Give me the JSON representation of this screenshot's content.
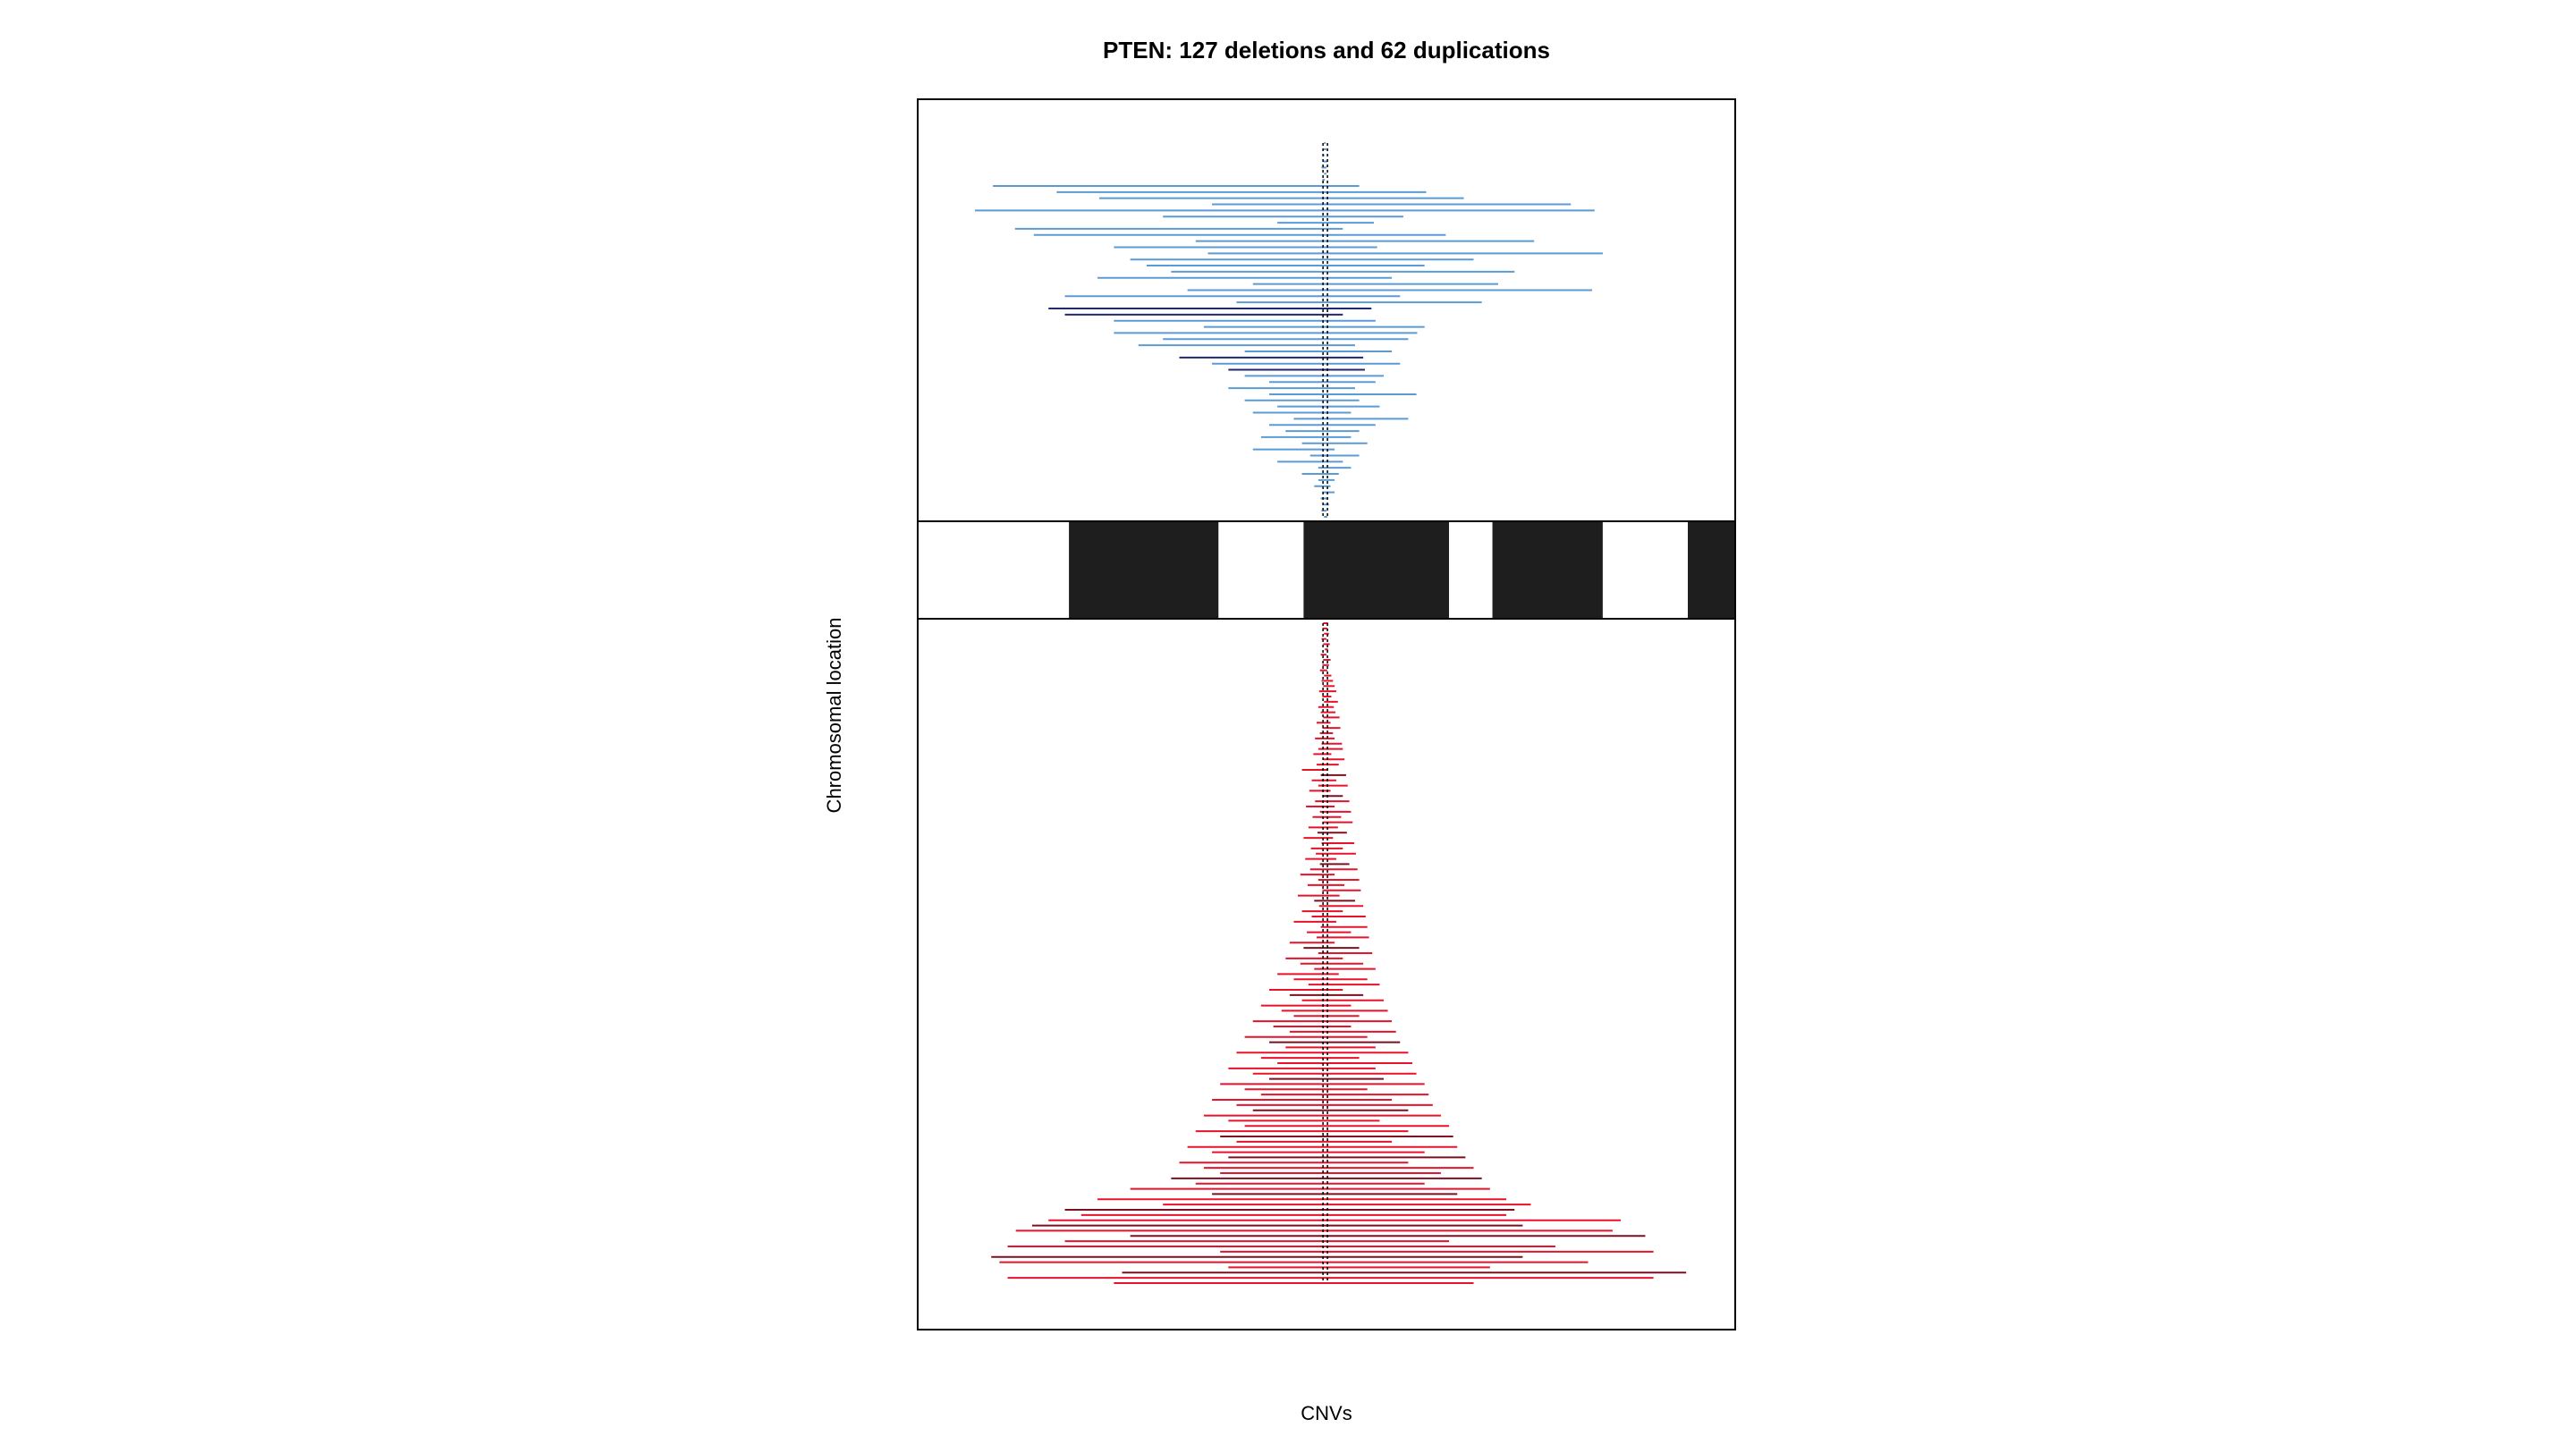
{
  "chart_data": {
    "type": "segment",
    "title": "PTEN: 127 deletions and 62 duplications",
    "xlabel": "CNVs",
    "ylabel": "Chromosomal location",
    "gene_marker": "PTEN",
    "deletion_count": 127,
    "duplication_count": 62,
    "colors": {
      "duplication": "#5b9bd5",
      "duplication_dark": "#1f2a6e",
      "deletion": "#e8132b",
      "deletion_dark": "#7a1020",
      "frame": "#000000",
      "band_dark": "#1e1e1e",
      "band_light": "#ffffff",
      "gene_line": "#000000"
    },
    "ideogram_bands": [
      {
        "start": 0.0,
        "end": 0.185,
        "stain": "light"
      },
      {
        "start": 0.185,
        "end": 0.368,
        "stain": "dark"
      },
      {
        "start": 0.368,
        "end": 0.472,
        "stain": "light"
      },
      {
        "start": 0.472,
        "end": 0.65,
        "stain": "dark"
      },
      {
        "start": 0.65,
        "end": 0.703,
        "stain": "light"
      },
      {
        "start": 0.703,
        "end": 0.838,
        "stain": "dark"
      },
      {
        "start": 0.838,
        "end": 0.942,
        "stain": "light"
      },
      {
        "start": 0.942,
        "end": 1.0,
        "stain": "dark"
      }
    ],
    "duplications": [
      {
        "start": 0.497,
        "end": 0.499
      },
      {
        "start": 0.496,
        "end": 0.5
      },
      {
        "start": 0.497,
        "end": 0.498
      },
      {
        "start": 0.496,
        "end": 0.501
      },
      {
        "start": 0.494,
        "end": 0.5
      },
      {
        "start": 0.497,
        "end": 0.5
      },
      {
        "start": 0.495,
        "end": 0.498
      },
      {
        "start": 0.092,
        "end": 0.54
      },
      {
        "start": 0.17,
        "end": 0.622
      },
      {
        "start": 0.222,
        "end": 0.668
      },
      {
        "start": 0.36,
        "end": 0.799
      },
      {
        "start": 0.07,
        "end": 0.828
      },
      {
        "start": 0.3,
        "end": 0.594
      },
      {
        "start": 0.44,
        "end": 0.558
      },
      {
        "start": 0.119,
        "end": 0.52
      },
      {
        "start": 0.142,
        "end": 0.646
      },
      {
        "start": 0.34,
        "end": 0.754
      },
      {
        "start": 0.24,
        "end": 0.562
      },
      {
        "start": 0.355,
        "end": 0.838
      },
      {
        "start": 0.26,
        "end": 0.68
      },
      {
        "start": 0.28,
        "end": 0.62
      },
      {
        "start": 0.31,
        "end": 0.73
      },
      {
        "start": 0.22,
        "end": 0.58
      },
      {
        "start": 0.41,
        "end": 0.71
      },
      {
        "start": 0.33,
        "end": 0.825
      },
      {
        "start": 0.18,
        "end": 0.59
      },
      {
        "start": 0.39,
        "end": 0.69
      },
      {
        "start": 0.16,
        "end": 0.555,
        "dark": true
      },
      {
        "start": 0.18,
        "end": 0.52,
        "dark": true
      },
      {
        "start": 0.24,
        "end": 0.56
      },
      {
        "start": 0.35,
        "end": 0.62
      },
      {
        "start": 0.24,
        "end": 0.611
      },
      {
        "start": 0.3,
        "end": 0.6
      },
      {
        "start": 0.27,
        "end": 0.535
      },
      {
        "start": 0.4,
        "end": 0.58
      },
      {
        "start": 0.32,
        "end": 0.545,
        "dark": true
      },
      {
        "start": 0.36,
        "end": 0.59
      },
      {
        "start": 0.38,
        "end": 0.547,
        "dark": true
      },
      {
        "start": 0.4,
        "end": 0.57
      },
      {
        "start": 0.43,
        "end": 0.56
      },
      {
        "start": 0.38,
        "end": 0.535
      },
      {
        "start": 0.43,
        "end": 0.61
      },
      {
        "start": 0.4,
        "end": 0.54
      },
      {
        "start": 0.44,
        "end": 0.565
      },
      {
        "start": 0.41,
        "end": 0.53
      },
      {
        "start": 0.46,
        "end": 0.6
      },
      {
        "start": 0.43,
        "end": 0.56
      },
      {
        "start": 0.45,
        "end": 0.54
      },
      {
        "start": 0.42,
        "end": 0.53
      },
      {
        "start": 0.47,
        "end": 0.55
      },
      {
        "start": 0.41,
        "end": 0.51
      },
      {
        "start": 0.48,
        "end": 0.54
      },
      {
        "start": 0.44,
        "end": 0.52
      },
      {
        "start": 0.49,
        "end": 0.53
      },
      {
        "start": 0.47,
        "end": 0.515
      },
      {
        "start": 0.49,
        "end": 0.51
      },
      {
        "start": 0.485,
        "end": 0.505
      },
      {
        "start": 0.495,
        "end": 0.51
      },
      {
        "start": 0.493,
        "end": 0.502
      },
      {
        "start": 0.496,
        "end": 0.503
      },
      {
        "start": 0.494,
        "end": 0.5
      },
      {
        "start": 0.497,
        "end": 0.501
      }
    ],
    "deletions": [
      {
        "start": 0.496,
        "end": 0.502
      },
      {
        "start": 0.495,
        "end": 0.501
      },
      {
        "start": 0.497,
        "end": 0.503
      },
      {
        "start": 0.494,
        "end": 0.5
      },
      {
        "start": 0.496,
        "end": 0.504
      },
      {
        "start": 0.498,
        "end": 0.502
      },
      {
        "start": 0.493,
        "end": 0.5
      },
      {
        "start": 0.496,
        "end": 0.505
      },
      {
        "start": 0.495,
        "end": 0.503
      },
      {
        "start": 0.492,
        "end": 0.501
      },
      {
        "start": 0.497,
        "end": 0.506
      },
      {
        "start": 0.494,
        "end": 0.508
      },
      {
        "start": 0.496,
        "end": 0.51
      },
      {
        "start": 0.491,
        "end": 0.512
      },
      {
        "start": 0.495,
        "end": 0.506
      },
      {
        "start": 0.497,
        "end": 0.514
      },
      {
        "start": 0.49,
        "end": 0.509
      },
      {
        "start": 0.493,
        "end": 0.511
      },
      {
        "start": 0.496,
        "end": 0.516
      },
      {
        "start": 0.488,
        "end": 0.505
      },
      {
        "start": 0.495,
        "end": 0.517
      },
      {
        "start": 0.492,
        "end": 0.508
      },
      {
        "start": 0.486,
        "end": 0.51
      },
      {
        "start": 0.494,
        "end": 0.519
      },
      {
        "start": 0.49,
        "end": 0.52
      },
      {
        "start": 0.484,
        "end": 0.506
      },
      {
        "start": 0.496,
        "end": 0.522
      },
      {
        "start": 0.488,
        "end": 0.515
      },
      {
        "start": 0.47,
        "end": 0.502
      },
      {
        "start": 0.493,
        "end": 0.524,
        "dark": true
      },
      {
        "start": 0.482,
        "end": 0.512
      },
      {
        "start": 0.49,
        "end": 0.526
      },
      {
        "start": 0.479,
        "end": 0.505
      },
      {
        "start": 0.495,
        "end": 0.52,
        "dark": true
      },
      {
        "start": 0.486,
        "end": 0.528
      },
      {
        "start": 0.475,
        "end": 0.51
      },
      {
        "start": 0.492,
        "end": 0.53
      },
      {
        "start": 0.483,
        "end": 0.518
      },
      {
        "start": 0.496,
        "end": 0.532
      },
      {
        "start": 0.478,
        "end": 0.514
      },
      {
        "start": 0.489,
        "end": 0.525,
        "dark": true
      },
      {
        "start": 0.472,
        "end": 0.508
      },
      {
        "start": 0.494,
        "end": 0.534
      },
      {
        "start": 0.481,
        "end": 0.52
      },
      {
        "start": 0.487,
        "end": 0.536
      },
      {
        "start": 0.474,
        "end": 0.512
      },
      {
        "start": 0.492,
        "end": 0.528,
        "dark": true
      },
      {
        "start": 0.48,
        "end": 0.538
      },
      {
        "start": 0.468,
        "end": 0.51
      },
      {
        "start": 0.49,
        "end": 0.54
      },
      {
        "start": 0.477,
        "end": 0.522
      },
      {
        "start": 0.495,
        "end": 0.542
      },
      {
        "start": 0.465,
        "end": 0.516
      },
      {
        "start": 0.485,
        "end": 0.535,
        "dark": true
      },
      {
        "start": 0.491,
        "end": 0.545
      },
      {
        "start": 0.47,
        "end": 0.52
      },
      {
        "start": 0.482,
        "end": 0.548
      },
      {
        "start": 0.46,
        "end": 0.512
      },
      {
        "start": 0.493,
        "end": 0.55
      },
      {
        "start": 0.476,
        "end": 0.53
      },
      {
        "start": 0.488,
        "end": 0.552
      },
      {
        "start": 0.455,
        "end": 0.51
      },
      {
        "start": 0.472,
        "end": 0.54,
        "dark": true
      },
      {
        "start": 0.49,
        "end": 0.556
      },
      {
        "start": 0.45,
        "end": 0.52
      },
      {
        "start": 0.468,
        "end": 0.545
      },
      {
        "start": 0.485,
        "end": 0.56
      },
      {
        "start": 0.44,
        "end": 0.515
      },
      {
        "start": 0.46,
        "end": 0.55
      },
      {
        "start": 0.478,
        "end": 0.565
      },
      {
        "start": 0.43,
        "end": 0.52
      },
      {
        "start": 0.455,
        "end": 0.545,
        "dark": true
      },
      {
        "start": 0.47,
        "end": 0.57
      },
      {
        "start": 0.42,
        "end": 0.53
      },
      {
        "start": 0.445,
        "end": 0.575
      },
      {
        "start": 0.46,
        "end": 0.54
      },
      {
        "start": 0.41,
        "end": 0.58
      },
      {
        "start": 0.435,
        "end": 0.53
      },
      {
        "start": 0.455,
        "end": 0.585
      },
      {
        "start": 0.4,
        "end": 0.55
      },
      {
        "start": 0.43,
        "end": 0.59,
        "dark": true
      },
      {
        "start": 0.45,
        "end": 0.56
      },
      {
        "start": 0.39,
        "end": 0.6
      },
      {
        "start": 0.42,
        "end": 0.54
      },
      {
        "start": 0.44,
        "end": 0.605
      },
      {
        "start": 0.38,
        "end": 0.56
      },
      {
        "start": 0.41,
        "end": 0.61
      },
      {
        "start": 0.43,
        "end": 0.57,
        "dark": true
      },
      {
        "start": 0.37,
        "end": 0.62
      },
      {
        "start": 0.4,
        "end": 0.55
      },
      {
        "start": 0.42,
        "end": 0.625
      },
      {
        "start": 0.36,
        "end": 0.58
      },
      {
        "start": 0.39,
        "end": 0.63
      },
      {
        "start": 0.41,
        "end": 0.6,
        "dark": true
      },
      {
        "start": 0.35,
        "end": 0.64
      },
      {
        "start": 0.38,
        "end": 0.565
      },
      {
        "start": 0.4,
        "end": 0.65
      },
      {
        "start": 0.34,
        "end": 0.6
      },
      {
        "start": 0.37,
        "end": 0.655,
        "dark": true
      },
      {
        "start": 0.39,
        "end": 0.58
      },
      {
        "start": 0.33,
        "end": 0.66
      },
      {
        "start": 0.36,
        "end": 0.62
      },
      {
        "start": 0.38,
        "end": 0.67,
        "dark": true
      },
      {
        "start": 0.32,
        "end": 0.6
      },
      {
        "start": 0.35,
        "end": 0.68
      },
      {
        "start": 0.37,
        "end": 0.64
      },
      {
        "start": 0.31,
        "end": 0.69,
        "dark": true
      },
      {
        "start": 0.34,
        "end": 0.62
      },
      {
        "start": 0.26,
        "end": 0.7
      },
      {
        "start": 0.36,
        "end": 0.66,
        "dark": true
      },
      {
        "start": 0.22,
        "end": 0.72
      },
      {
        "start": 0.3,
        "end": 0.75
      },
      {
        "start": 0.18,
        "end": 0.73,
        "dark": true
      },
      {
        "start": 0.2,
        "end": 0.72
      },
      {
        "start": 0.16,
        "end": 0.86
      },
      {
        "start": 0.14,
        "end": 0.74,
        "dark": true
      },
      {
        "start": 0.12,
        "end": 0.85
      },
      {
        "start": 0.26,
        "end": 0.89,
        "dark": true
      },
      {
        "start": 0.18,
        "end": 0.65
      },
      {
        "start": 0.11,
        "end": 0.78
      },
      {
        "start": 0.37,
        "end": 0.9
      },
      {
        "start": 0.09,
        "end": 0.74,
        "dark": true
      },
      {
        "start": 0.1,
        "end": 0.82
      },
      {
        "start": 0.38,
        "end": 0.7
      },
      {
        "start": 0.25,
        "end": 0.94,
        "dark": true
      },
      {
        "start": 0.11,
        "end": 0.9
      },
      {
        "start": 0.24,
        "end": 0.68
      }
    ]
  }
}
